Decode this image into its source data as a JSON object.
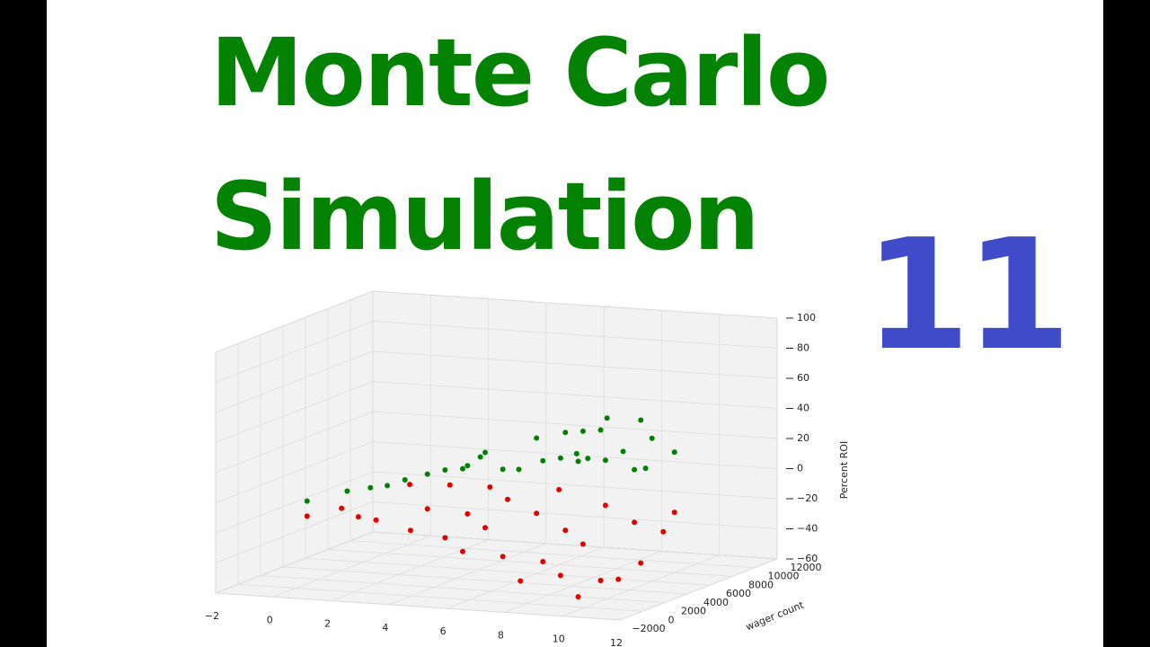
{
  "title_lines": [
    "Monte Carlo",
    "Simulation"
  ],
  "episode": "11",
  "chart_data": {
    "type": "scatter3d",
    "zlabel": "Percent ROI",
    "ylabel": "wager count",
    "xlim": [
      -2,
      12
    ],
    "ylim": [
      -2000,
      12000
    ],
    "zlim": [
      -60,
      100
    ],
    "xticks": [
      {
        "value": -2,
        "label": "−2"
      },
      0,
      2,
      4,
      6,
      8,
      10,
      12
    ],
    "yticks": [
      {
        "value": -2000,
        "label": "−2000"
      },
      0,
      2000,
      4000,
      6000,
      8000,
      10000,
      12000
    ],
    "zticks": [
      {
        "value": -60,
        "label": "−60"
      },
      {
        "value": -40,
        "label": "−40"
      },
      {
        "value": -20,
        "label": "−20"
      },
      0,
      20,
      40,
      60,
      80,
      100
    ],
    "grid": true,
    "series": [
      {
        "color": "#008000",
        "x": [
          0,
          1,
          2,
          2,
          3,
          3,
          4,
          4,
          5,
          5,
          6,
          6,
          7,
          7,
          8,
          8,
          8,
          9,
          9,
          10,
          10,
          9,
          9,
          10,
          7,
          10,
          9,
          7,
          5,
          6
        ],
        "y": [
          1000,
          2000,
          1500,
          3000,
          2000,
          4000,
          3000,
          5000,
          2000,
          4000,
          3000,
          6000,
          4000,
          6000,
          3000,
          5000,
          7000,
          4000,
          6000,
          5000,
          8000,
          2000,
          7000,
          6000,
          8000,
          2000,
          8000,
          7000,
          7000,
          1000
        ],
        "z": [
          -5,
          0,
          5,
          2,
          10,
          8,
          15,
          12,
          20,
          25,
          18,
          30,
          22,
          35,
          28,
          40,
          15,
          45,
          25,
          50,
          20,
          30,
          10,
          35,
          12,
          60,
          8,
          18,
          5,
          32
        ]
      },
      {
        "color": "#e00000",
        "x": [
          0,
          1,
          1,
          2,
          3,
          3,
          4,
          4,
          5,
          5,
          6,
          6,
          7,
          7,
          8,
          8,
          9,
          9,
          10,
          10,
          8,
          9,
          10,
          6,
          7,
          5,
          4,
          3,
          2,
          10
        ],
        "y": [
          1000,
          1500,
          3000,
          2000,
          2500,
          4000,
          3000,
          5000,
          2000,
          4000,
          3000,
          6000,
          4000,
          6000,
          3000,
          5000,
          4000,
          7000,
          5000,
          8000,
          7000,
          2000,
          3000,
          8000,
          2000,
          6000,
          7000,
          6000,
          5000,
          7000
        ],
        "z": [
          -15,
          -10,
          -20,
          -18,
          -25,
          -15,
          -30,
          -20,
          -35,
          -25,
          -40,
          -20,
          -45,
          -30,
          -50,
          -35,
          -55,
          -25,
          -45,
          -20,
          -15,
          -60,
          -50,
          -10,
          -52,
          -12,
          -8,
          -5,
          -3,
          -30
        ]
      }
    ]
  }
}
